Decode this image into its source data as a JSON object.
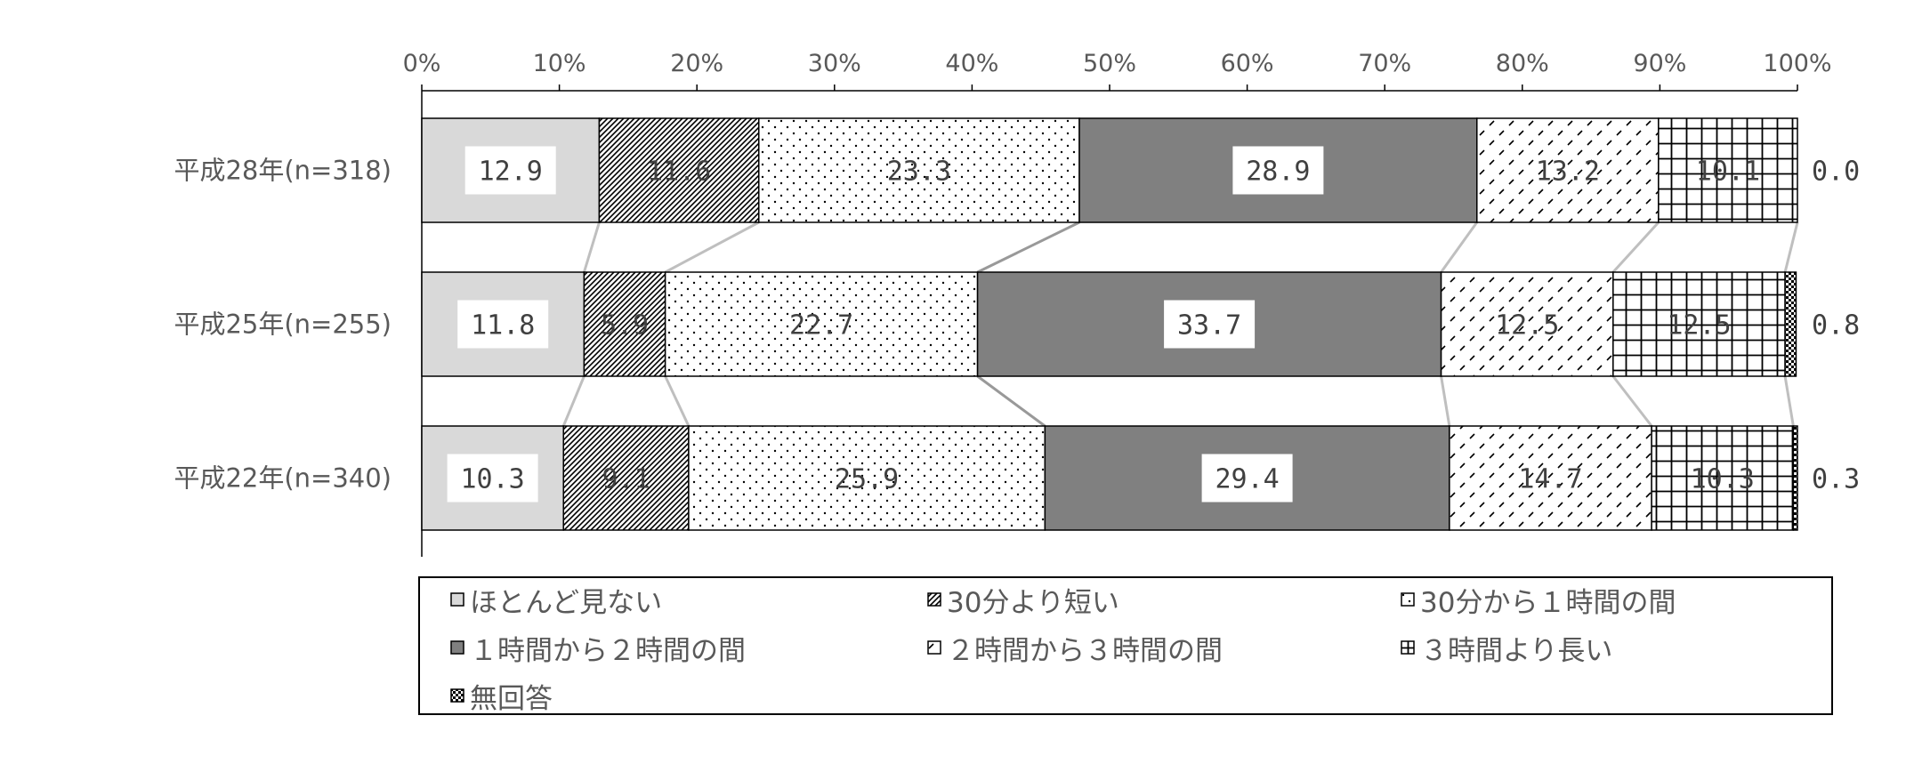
{
  "chart_data": {
    "type": "bar",
    "orientation": "horizontal",
    "stacked": "percent",
    "categories": [
      "平成28年(n=318)",
      "平成25年(n=255)",
      "平成22年(n=340)"
    ],
    "series": [
      {
        "name": "ほとんど見ない",
        "values": [
          12.9,
          11.8,
          10.3
        ],
        "value_labels": [
          "12.9",
          "11.8",
          "10.3"
        ],
        "color": "#d9d9d9",
        "pattern": "solid"
      },
      {
        "name": "30分より短い",
        "values": [
          11.6,
          5.9,
          9.1
        ],
        "value_labels": [
          "11.6",
          "5.9",
          "9.1"
        ],
        "color": "#ffffff",
        "pattern": "diagonal-dense"
      },
      {
        "name": "30分から１時間の間",
        "values": [
          23.3,
          22.7,
          25.9
        ],
        "value_labels": [
          "23.3",
          "22.7",
          "25.9"
        ],
        "color": "#ffffff",
        "pattern": "dots"
      },
      {
        "name": "１時間から２時間の間",
        "values": [
          28.9,
          33.7,
          29.4
        ],
        "value_labels": [
          "28.9",
          "33.7",
          "29.4"
        ],
        "color": "#808080",
        "pattern": "solid"
      },
      {
        "name": "２時間から３時間の間",
        "values": [
          13.2,
          12.5,
          14.7
        ],
        "value_labels": [
          "13.2",
          "12.5",
          "14.7"
        ],
        "color": "#ffffff",
        "pattern": "dashes"
      },
      {
        "name": "３時間より長い",
        "values": [
          10.1,
          12.5,
          10.3
        ],
        "value_labels": [
          "10.1",
          "12.5",
          "10.3"
        ],
        "color": "#ffffff",
        "pattern": "grid"
      },
      {
        "name": "無回答",
        "values": [
          0.0,
          0.8,
          0.3
        ],
        "value_labels": [
          "0.0",
          "0.8",
          "0.3"
        ],
        "color": "#000000",
        "pattern": "checker"
      }
    ],
    "xlim": [
      0,
      100
    ],
    "xticks": [
      "0%",
      "10%",
      "20%",
      "30%",
      "40%",
      "50%",
      "60%",
      "70%",
      "80%",
      "90%",
      "100%"
    ],
    "axis_position": "top",
    "grid": false,
    "legend_position": "bottom",
    "legend": [
      "ほとんど見ない",
      "30分より短い",
      "30分から１時間の間",
      "１時間から２時間の間",
      "２時間から３時間の間",
      "３時間より長い",
      "無回答"
    ]
  }
}
